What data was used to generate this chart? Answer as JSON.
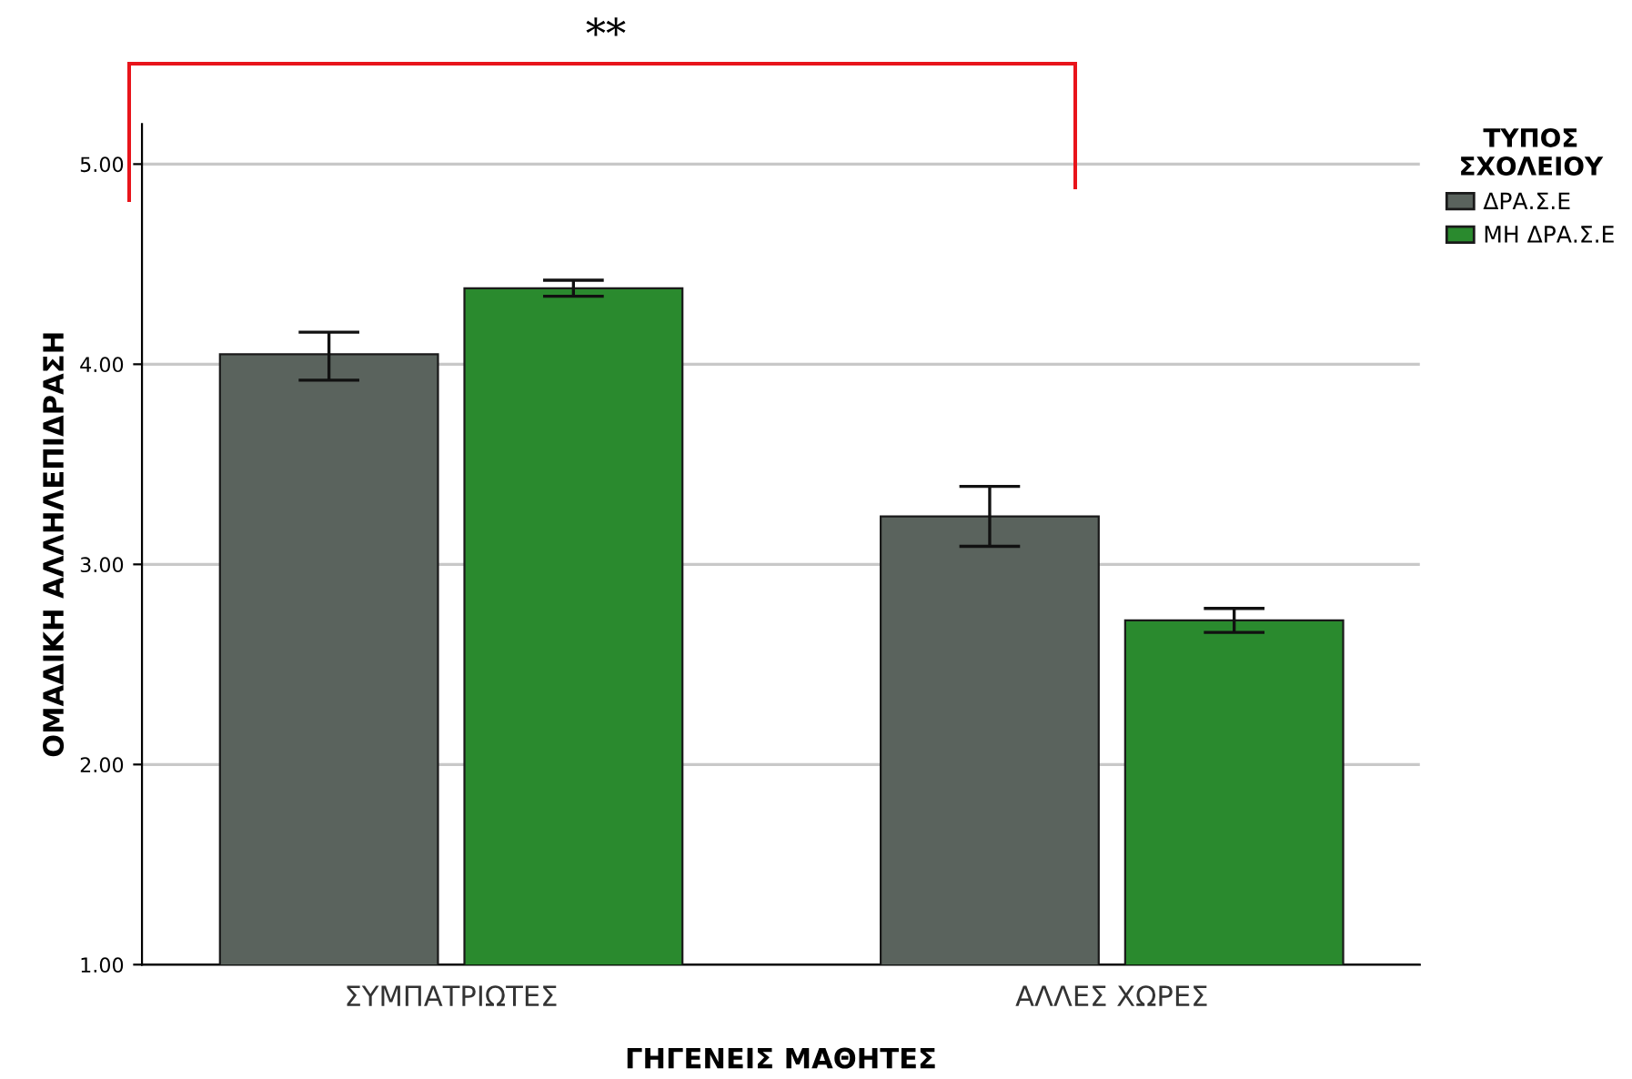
{
  "chart_data": {
    "type": "bar",
    "xlabel": "ΓΗΓΕΝΕΙΣ ΜΑΘΗΤΕΣ",
    "ylabel": "ΟΜΑΔΙΚΗ ΑΛΛΗΛΕΠΙΔΡΑΣΗ",
    "legend_title": "ΤΥΠΟΣ\nΣΧΟΛΕΙΟΥ",
    "categories": [
      "ΣΥΜΠΑΤΡΙΩΤΕΣ",
      "ΑΛΛΕΣ ΧΩΡΕΣ"
    ],
    "series": [
      {
        "name": "ΔΡΑ.Σ.Ε",
        "color": "#5a635d",
        "values": [
          4.05,
          3.24
        ],
        "errors": [
          [
            3.92,
            4.16
          ],
          [
            3.09,
            3.39
          ]
        ]
      },
      {
        "name": "ΜΗ ΔΡΑ.Σ.Ε",
        "color": "#2a8a2e",
        "values": [
          4.38,
          2.72
        ],
        "errors": [
          [
            4.34,
            4.42
          ],
          [
            2.66,
            2.78
          ]
        ]
      }
    ],
    "ylim": [
      1,
      5.2
    ],
    "yticks": [
      {
        "value": 1,
        "label": "1.00"
      },
      {
        "value": 2,
        "label": "2.00"
      },
      {
        "value": 3,
        "label": "3.00"
      },
      {
        "value": 4,
        "label": "4.00"
      },
      {
        "value": 5,
        "label": "5.00"
      }
    ],
    "grid": "y",
    "legend": "top right",
    "annotations": [
      "**"
    ]
  }
}
